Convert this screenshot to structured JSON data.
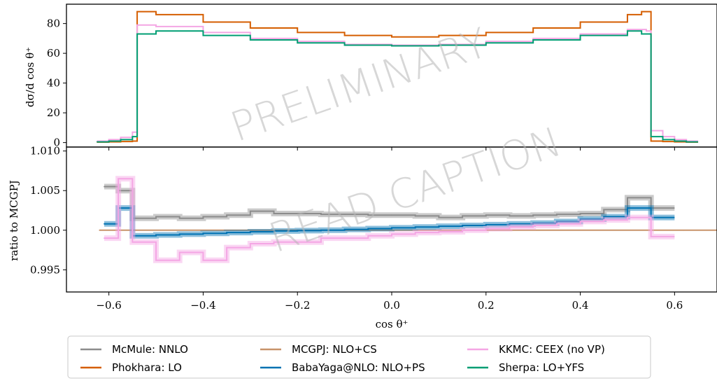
{
  "chart_data": [
    {
      "type": "line",
      "panel": "top",
      "xlabel": "",
      "ylabel": "dσ/d cos θ⁺",
      "xlim": [
        -0.69,
        0.69
      ],
      "ylim": [
        -3,
        93
      ],
      "yticks": [
        0,
        20,
        40,
        60,
        80
      ],
      "ytick_labels": [
        "0",
        "20",
        "40",
        "60",
        "80"
      ],
      "series": [
        {
          "name": "Phokhara: LO",
          "color": "#d55e00",
          "x": [
            -0.625,
            -0.6,
            -0.575,
            -0.55,
            -0.54,
            -0.5,
            -0.4,
            -0.3,
            -0.2,
            -0.1,
            0.0,
            0.1,
            0.2,
            0.3,
            0.4,
            0.5,
            0.53,
            0.54,
            0.55,
            0.575,
            0.6,
            0.625
          ],
          "y": [
            0.3,
            0.5,
            0.7,
            1.0,
            88,
            86,
            81,
            77,
            74,
            72,
            71,
            72,
            74,
            77,
            81,
            86,
            88,
            88,
            1.0,
            0.7,
            0.5,
            0.3
          ]
        },
        {
          "name": "KKMC: CEEX (no VP)",
          "color": "#f4a6e4",
          "x": [
            -0.625,
            -0.6,
            -0.575,
            -0.55,
            -0.54,
            -0.5,
            -0.4,
            -0.3,
            -0.2,
            -0.1,
            0.0,
            0.1,
            0.2,
            0.3,
            0.4,
            0.5,
            0.53,
            0.54,
            0.55,
            0.575,
            0.6,
            0.625
          ],
          "y": [
            1.0,
            2.0,
            3.5,
            7.0,
            79,
            78,
            74,
            70,
            68,
            66,
            65.5,
            66,
            68,
            70,
            73,
            76,
            76,
            75,
            8,
            4,
            2,
            1
          ]
        },
        {
          "name": "Sherpa: LO+YFS",
          "color": "#009e73",
          "x": [
            -0.625,
            -0.6,
            -0.575,
            -0.55,
            -0.54,
            -0.5,
            -0.4,
            -0.3,
            -0.2,
            -0.1,
            0.0,
            0.1,
            0.2,
            0.3,
            0.4,
            0.5,
            0.53,
            0.54,
            0.55,
            0.575,
            0.6,
            0.625
          ],
          "y": [
            0.5,
            1.0,
            2.0,
            4.0,
            73,
            75,
            72,
            69,
            67,
            65.5,
            65,
            65.5,
            67,
            69,
            72,
            75,
            73,
            73,
            4,
            2,
            1,
            0.5
          ]
        }
      ]
    },
    {
      "type": "line",
      "panel": "bottom",
      "xlabel": "cos θ⁺",
      "ylabel": "ratio to MCGPJ",
      "xlim": [
        -0.69,
        0.69
      ],
      "ylim": [
        0.9922,
        1.0105
      ],
      "xticks": [
        -0.6,
        -0.4,
        -0.2,
        0.0,
        0.2,
        0.4,
        0.6
      ],
      "xtick_labels": [
        "−0.6",
        "−0.4",
        "−0.2",
        "0.0",
        "0.2",
        "0.4",
        "0.6"
      ],
      "yticks": [
        0.995,
        1.0,
        1.005,
        1.01
      ],
      "ytick_labels": [
        "0.995",
        "1.000",
        "1.005",
        "1.010"
      ],
      "series": [
        {
          "name": "MCGPJ: NLO+CS",
          "color": "#c8936a",
          "x": [
            -0.62,
            0.62
          ],
          "y": [
            1.0,
            1.0
          ]
        },
        {
          "name": "McMule: NNLO",
          "color": "#8c8c8c",
          "x": [
            -0.61,
            -0.58,
            -0.55,
            -0.5,
            -0.45,
            -0.4,
            -0.35,
            -0.3,
            -0.25,
            -0.2,
            -0.15,
            -0.1,
            -0.05,
            0.0,
            0.05,
            0.1,
            0.15,
            0.2,
            0.25,
            0.3,
            0.35,
            0.4,
            0.45,
            0.5,
            0.55
          ],
          "y": [
            1.0055,
            1.005,
            1.0015,
            1.0017,
            1.0015,
            1.0017,
            1.0019,
            1.0024,
            1.0021,
            1.0021,
            1.002,
            1.002,
            1.0019,
            1.0019,
            1.0018,
            1.0016,
            1.0018,
            1.0019,
            1.0018,
            1.0019,
            1.002,
            1.0021,
            1.0026,
            1.0041,
            1.0028
          ]
        },
        {
          "name": "BabaYaga@NLO: NLO+PS",
          "color": "#0072b2",
          "x": [
            -0.61,
            -0.58,
            -0.55,
            -0.5,
            -0.45,
            -0.4,
            -0.35,
            -0.3,
            -0.25,
            -0.2,
            -0.15,
            -0.1,
            -0.05,
            0.0,
            0.05,
            0.1,
            0.15,
            0.2,
            0.25,
            0.3,
            0.35,
            0.4,
            0.45,
            0.5,
            0.55
          ],
          "y": [
            1.0008,
            1.0028,
            0.9993,
            0.9994,
            0.9995,
            0.9996,
            0.9997,
            0.9998,
            0.9999,
            0.99995,
            1.0,
            1.0001,
            1.0002,
            1.0003,
            1.0004,
            1.0005,
            1.0006,
            1.0007,
            1.0008,
            1.0009,
            1.0011,
            1.0014,
            1.0017,
            1.0028,
            1.0016
          ]
        },
        {
          "name": "KKMC: CEEX (no VP)",
          "color": "#f4a6e4",
          "x": [
            -0.61,
            -0.58,
            -0.55,
            -0.5,
            -0.45,
            -0.4,
            -0.35,
            -0.3,
            -0.25,
            -0.2,
            -0.15,
            -0.1,
            -0.05,
            0.0,
            0.05,
            0.1,
            0.15,
            0.2,
            0.25,
            0.3,
            0.35,
            0.4,
            0.45,
            0.5,
            0.55
          ],
          "y": [
            0.999,
            1.0065,
            0.9985,
            0.9962,
            0.9972,
            0.9962,
            0.9978,
            0.9983,
            0.9985,
            0.9985,
            0.999,
            0.999,
            0.9993,
            0.9995,
            0.9997,
            0.9998,
            1.0,
            1.0002,
            1.0004,
            1.0006,
            1.0008,
            1.0011,
            1.0013,
            1.0016,
            0.9992
          ]
        }
      ]
    }
  ],
  "watermark": [
    "PRELIMINARY",
    "READ CAPTION"
  ],
  "legend": {
    "placement": "bottom",
    "entries": [
      {
        "label": "McMule: NNLO",
        "color": "#8c8c8c"
      },
      {
        "label": "Phokhara: LO",
        "color": "#d55e00"
      },
      {
        "label": "MCGPJ: NLO+CS",
        "color": "#c8936a"
      },
      {
        "label": "BabaYaga@NLO: NLO+PS",
        "color": "#0072b2"
      },
      {
        "label": "KKMC: CEEX (no VP)",
        "color": "#f4a6e4"
      },
      {
        "label": "Sherpa: LO+YFS",
        "color": "#009e73"
      }
    ]
  }
}
